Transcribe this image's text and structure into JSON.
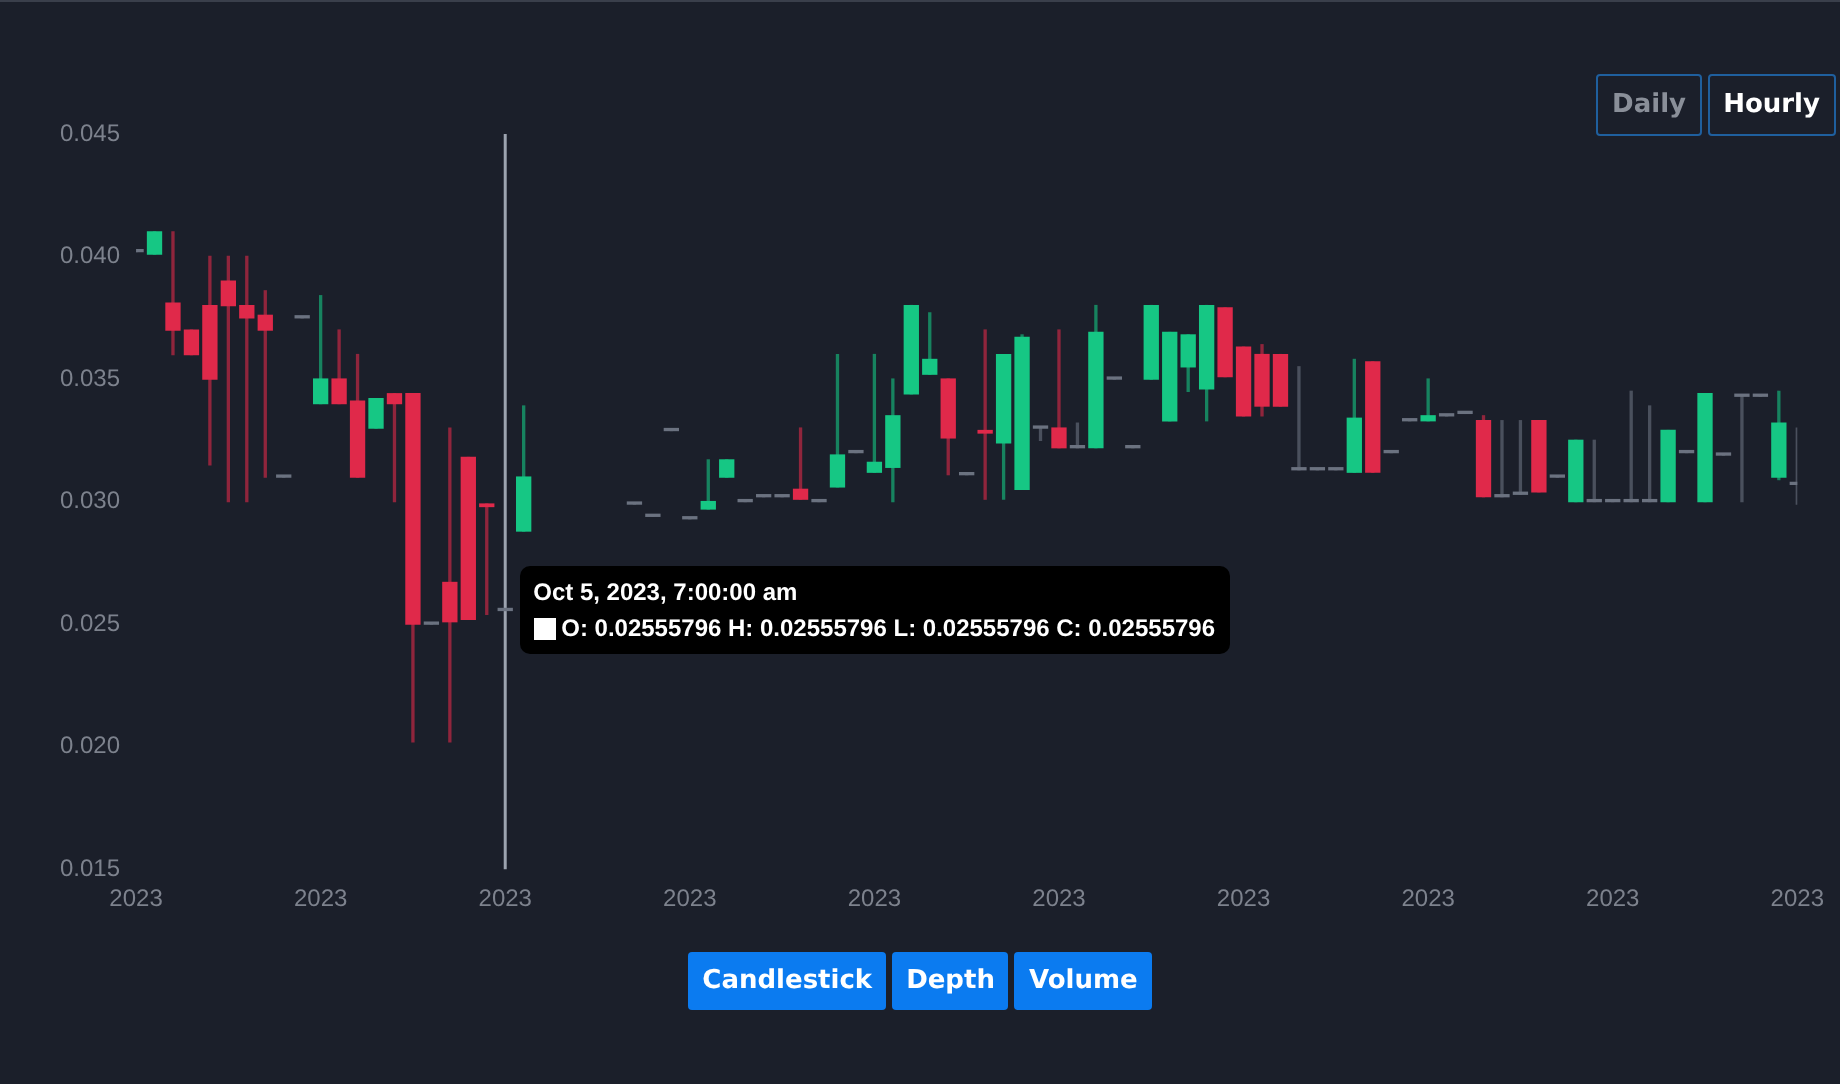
{
  "chart_data": {
    "type": "candlestick",
    "x": [
      "2023-10-04T11:00",
      "2023-10-04T12:00",
      "2023-10-04T13:00",
      "2023-10-04T14:00",
      "2023-10-04T15:00",
      "2023-10-04T16:00",
      "2023-10-04T17:00",
      "2023-10-04T18:00",
      "2023-10-04T19:00",
      "2023-10-04T20:00",
      "2023-10-04T21:00",
      "2023-10-04T22:00",
      "2023-10-04T23:00",
      "2023-10-05T00:00",
      "2023-10-05T01:00",
      "2023-10-05T02:00",
      "2023-10-05T03:00",
      "2023-10-05T04:00",
      "2023-10-05T05:00",
      "2023-10-05T06:00",
      "2023-10-05T07:00",
      "2023-10-05T08:00",
      null,
      null,
      null,
      null,
      null,
      "2023-10-05T14:00",
      "2023-10-05T15:00",
      "2023-10-05T16:00",
      "2023-10-05T17:00",
      "2023-10-05T18:00",
      "2023-10-05T19:00",
      "2023-10-05T20:00",
      "2023-10-05T21:00",
      "2023-10-05T22:00",
      "2023-10-05T23:00",
      "2023-10-06T00:00",
      "2023-10-06T01:00",
      "2023-10-06T02:00",
      "2023-10-06T03:00",
      "2023-10-06T04:00",
      "2023-10-06T05:00",
      "2023-10-06T06:00",
      "2023-10-06T07:00",
      "2023-10-06T08:00",
      "2023-10-06T09:00",
      "2023-10-06T10:00",
      "2023-10-06T11:00",
      "2023-10-06T12:00",
      "2023-10-06T13:00",
      "2023-10-06T14:00",
      "2023-10-06T15:00",
      "2023-10-06T16:00",
      "2023-10-06T17:00",
      "2023-10-06T18:00",
      "2023-10-06T19:00",
      "2023-10-06T20:00",
      "2023-10-06T21:00",
      "2023-10-06T22:00",
      "2023-10-06T23:00",
      "2023-10-07T00:00",
      "2023-10-07T01:00",
      "2023-10-07T02:00",
      "2023-10-07T03:00",
      "2023-10-07T04:00",
      "2023-10-07T05:00",
      "2023-10-07T06:00",
      "2023-10-07T07:00",
      "2023-10-07T08:00",
      "2023-10-07T09:00",
      "2023-10-07T10:00",
      "2023-10-07T11:00",
      "2023-10-07T12:00",
      "2023-10-07T13:00",
      "2023-10-07T14:00",
      "2023-10-07T15:00",
      "2023-10-07T16:00",
      "2023-10-07T17:00",
      "2023-10-07T18:00",
      "2023-10-07T19:00",
      "2023-10-07T20:00",
      "2023-10-07T21:00",
      "2023-10-07T22:00",
      "2023-10-07T23:00",
      "2023-10-08T00:00",
      "2023-10-08T01:00",
      "2023-10-08T02:00",
      "2023-10-08T03:00",
      "2023-10-08T04:00",
      "2023-10-08T05:00"
    ],
    "ohlc": [
      [
        0.0402,
        0.0402,
        0.0402,
        0.0402
      ],
      [
        0.0401,
        0.041,
        0.0401,
        0.041
      ],
      [
        0.0381,
        0.041,
        0.036,
        0.037
      ],
      [
        0.037,
        0.037,
        0.036,
        0.036
      ],
      [
        0.038,
        0.04,
        0.0315,
        0.035
      ],
      [
        0.039,
        0.04,
        0.03,
        0.038
      ],
      [
        0.038,
        0.04,
        0.03,
        0.0375
      ],
      [
        0.0376,
        0.0386,
        0.031,
        0.037
      ],
      [
        0.031,
        0.031,
        0.031,
        0.031
      ],
      [
        0.0375,
        0.0375,
        0.0375,
        0.0375
      ],
      [
        0.034,
        0.0384,
        0.034,
        0.035
      ],
      [
        0.035,
        0.037,
        0.034,
        0.034
      ],
      [
        0.0341,
        0.036,
        0.031,
        0.031
      ],
      [
        0.033,
        0.0342,
        0.033,
        0.0342
      ],
      [
        0.0344,
        0.0344,
        0.03,
        0.034
      ],
      [
        0.0344,
        0.0344,
        0.0202,
        0.025
      ],
      [
        0.025,
        0.025,
        0.025,
        0.025
      ],
      [
        0.0267,
        0.033,
        0.0202,
        0.0251
      ],
      [
        0.0318,
        0.0318,
        0.0252,
        0.0252
      ],
      [
        0.0299,
        0.0299,
        0.0254,
        0.0298
      ],
      [
        0.02555796,
        0.02555796,
        0.02555796,
        0.02555796
      ],
      [
        0.0288,
        0.0339,
        0.0288,
        0.031
      ],
      null,
      null,
      null,
      null,
      null,
      [
        0.0299,
        0.0299,
        0.0299,
        0.0299
      ],
      [
        0.0294,
        0.0294,
        0.0294,
        0.0294
      ],
      [
        0.0329,
        0.0329,
        0.0329,
        0.0329
      ],
      [
        0.0293,
        0.0293,
        0.0293,
        0.0293
      ],
      [
        0.0297,
        0.0317,
        0.0297,
        0.03
      ],
      [
        0.031,
        0.0317,
        0.031,
        0.0317
      ],
      [
        0.03,
        0.03,
        0.03,
        0.03
      ],
      [
        0.0302,
        0.0302,
        0.0302,
        0.0302
      ],
      [
        0.0302,
        0.0302,
        0.0302,
        0.0302
      ],
      [
        0.0305,
        0.033,
        0.0301,
        0.0301
      ],
      [
        0.03,
        0.03,
        0.03,
        0.03
      ],
      [
        0.0306,
        0.036,
        0.0306,
        0.0319
      ],
      [
        0.032,
        0.032,
        0.032,
        0.032
      ],
      [
        0.0312,
        0.036,
        0.0312,
        0.0316
      ],
      [
        0.0314,
        0.035,
        0.03,
        0.0335
      ],
      [
        0.0344,
        0.038,
        0.0344,
        0.038
      ],
      [
        0.0352,
        0.0377,
        0.0352,
        0.0358
      ],
      [
        0.035,
        0.035,
        0.0311,
        0.0326
      ],
      [
        0.0311,
        0.0311,
        0.0311,
        0.0311
      ],
      [
        0.0329,
        0.037,
        0.0301,
        0.0328
      ],
      [
        0.0324,
        0.036,
        0.0301,
        0.036
      ],
      [
        0.0305,
        0.0368,
        0.0305,
        0.0367
      ],
      [
        0.033,
        0.033,
        0.0325,
        0.033
      ],
      [
        0.033,
        0.037,
        0.0322,
        0.0322
      ],
      [
        0.0322,
        0.0332,
        0.0322,
        0.0322
      ],
      [
        0.0322,
        0.038,
        0.0322,
        0.0369
      ],
      [
        0.035,
        0.035,
        0.035,
        0.035
      ],
      [
        0.0322,
        0.0322,
        0.0322,
        0.0322
      ],
      [
        0.035,
        0.038,
        0.035,
        0.038
      ],
      [
        0.0333,
        0.0369,
        0.0333,
        0.0369
      ],
      [
        0.0355,
        0.0368,
        0.0345,
        0.0368
      ],
      [
        0.0346,
        0.038,
        0.0333,
        0.038
      ],
      [
        0.0379,
        0.0379,
        0.0351,
        0.0351
      ],
      [
        0.0363,
        0.0363,
        0.0335,
        0.0335
      ],
      [
        0.036,
        0.0364,
        0.0335,
        0.0339
      ],
      [
        0.036,
        0.036,
        0.0339,
        0.0339
      ],
      [
        0.0313,
        0.0355,
        0.0313,
        0.0313
      ],
      [
        0.0313,
        0.0313,
        0.0313,
        0.0313
      ],
      [
        0.0313,
        0.0313,
        0.0313,
        0.0313
      ],
      [
        0.0312,
        0.0358,
        0.0312,
        0.0334
      ],
      [
        0.0357,
        0.0357,
        0.0312,
        0.0312
      ],
      [
        0.032,
        0.032,
        0.032,
        0.032
      ],
      [
        0.0333,
        0.0333,
        0.0333,
        0.0333
      ],
      [
        0.0333,
        0.035,
        0.0333,
        0.0335
      ],
      [
        0.0335,
        0.0335,
        0.0335,
        0.0335
      ],
      [
        0.0336,
        0.0336,
        0.0336,
        0.0336
      ],
      [
        0.0333,
        0.0335,
        0.0302,
        0.0302
      ],
      [
        0.0302,
        0.0333,
        0.0302,
        0.0302
      ],
      [
        0.0303,
        0.0333,
        0.0303,
        0.0303
      ],
      [
        0.0333,
        0.0333,
        0.0304,
        0.0304
      ],
      [
        0.031,
        0.031,
        0.031,
        0.031
      ],
      [
        0.03,
        0.0325,
        0.03,
        0.0325
      ],
      [
        0.03,
        0.0325,
        0.03,
        0.03
      ],
      [
        0.03,
        0.03,
        0.03,
        0.03
      ],
      [
        0.03,
        0.0345,
        0.03,
        0.03
      ],
      [
        0.03,
        0.0339,
        0.03,
        0.03
      ],
      [
        0.03,
        0.0329,
        0.03,
        0.0329
      ],
      [
        0.032,
        0.032,
        0.032,
        0.032
      ],
      [
        0.03,
        0.0344,
        0.03,
        0.0344
      ],
      [
        0.0319,
        0.0319,
        0.0319,
        0.0319
      ],
      [
        0.0343,
        0.0343,
        0.03,
        0.0343
      ],
      [
        0.0343,
        0.0343,
        0.0343,
        0.0343
      ],
      [
        0.031,
        0.0345,
        0.0309,
        0.0332
      ],
      [
        0.0307,
        0.033,
        0.0299,
        0.0307
      ]
    ],
    "colors": [
      "#6b7280",
      "#16c784",
      "#e0294a",
      "#e0294a",
      "#e0294a",
      "#e0294a",
      "#e0294a",
      "#e0294a",
      "#6b7280",
      "#6b7280",
      "#16c784",
      "#e0294a",
      "#e0294a",
      "#16c784",
      "#e0294a",
      "#e0294a",
      "#6b7280",
      "#e0294a",
      "#e0294a",
      "#e0294a",
      "#6b7280",
      "#16c784",
      null,
      null,
      null,
      null,
      null,
      "#6b7280",
      "#6b7280",
      "#6b7280",
      "#6b7280",
      "#16c784",
      "#16c784",
      "#6b7280",
      "#6b7280",
      "#6b7280",
      "#e0294a",
      "#6b7280",
      "#16c784",
      "#6b7280",
      "#16c784",
      "#16c784",
      "#16c784",
      "#16c784",
      "#e0294a",
      "#6b7280",
      "#e0294a",
      "#16c784",
      "#16c784",
      "#6b7280",
      "#e0294a",
      "#6b7280",
      "#16c784",
      "#6b7280",
      "#6b7280",
      "#16c784",
      "#16c784",
      "#16c784",
      "#16c784",
      "#e0294a",
      "#e0294a",
      "#e0294a",
      "#e0294a",
      "#6b7280",
      "#6b7280",
      "#6b7280",
      "#16c784",
      "#e0294a",
      "#6b7280",
      "#6b7280",
      "#16c784",
      "#6b7280",
      "#6b7280",
      "#e0294a",
      "#6b7280",
      "#6b7280",
      "#e0294a",
      "#6b7280",
      "#16c784",
      "#6b7280",
      "#6b7280",
      "#6b7280",
      "#6b7280",
      "#16c784",
      "#6b7280",
      "#16c784",
      "#6b7280",
      "#6b7280",
      "#6b7280",
      "#16c784",
      "#6b7280"
    ],
    "xlim": [
      "2023-10-04T11:00",
      "2023-10-08T05:00"
    ],
    "xticks": [
      {
        "value": "2023-10-04T11:00",
        "label": "2023"
      },
      {
        "value": "2023-10-04T21:00",
        "label": "2023"
      },
      {
        "value": "2023-10-05T07:00",
        "label": "2023"
      },
      {
        "value": "2023-10-05T17:00",
        "label": "2023"
      },
      {
        "value": "2023-10-06T03:00",
        "label": "2023"
      },
      {
        "value": "2023-10-06T13:00",
        "label": "2023"
      },
      {
        "value": "2023-10-06T23:00",
        "label": "2023"
      },
      {
        "value": "2023-10-07T09:00",
        "label": "2023"
      },
      {
        "value": "2023-10-07T19:00",
        "label": "2023"
      },
      {
        "value": "2023-10-08T05:00",
        "label": "2023"
      }
    ],
    "ylim": [
      0.015,
      0.045
    ],
    "yticks": [
      {
        "value": 0.015,
        "label": "0.015"
      },
      {
        "value": 0.02,
        "label": "0.020"
      },
      {
        "value": 0.025,
        "label": "0.025"
      },
      {
        "value": 0.03,
        "label": "0.030"
      },
      {
        "value": 0.035,
        "label": "0.035"
      },
      {
        "value": 0.04,
        "label": "0.040"
      },
      {
        "value": 0.045,
        "label": "0.045"
      }
    ],
    "legend": false,
    "ref_lines": [
      {
        "axis": "x",
        "value": "2023-10-05T07:00",
        "color": "#9ca3af"
      }
    ],
    "annotations": [
      {
        "text": "Oct 5, 2023, 7:00:00 am",
        "x": "2023-10-05T07:00",
        "y": 0.02555796
      },
      {
        "text": "O: 0.02555796  H: 0.02555796  L: 0.02555796  C: 0.02555796",
        "x": "2023-10-05T07:00",
        "y": 0.02555796
      },
      "Daily",
      "Hourly",
      "Candlestick",
      "Depth",
      "Volume"
    ]
  }
}
